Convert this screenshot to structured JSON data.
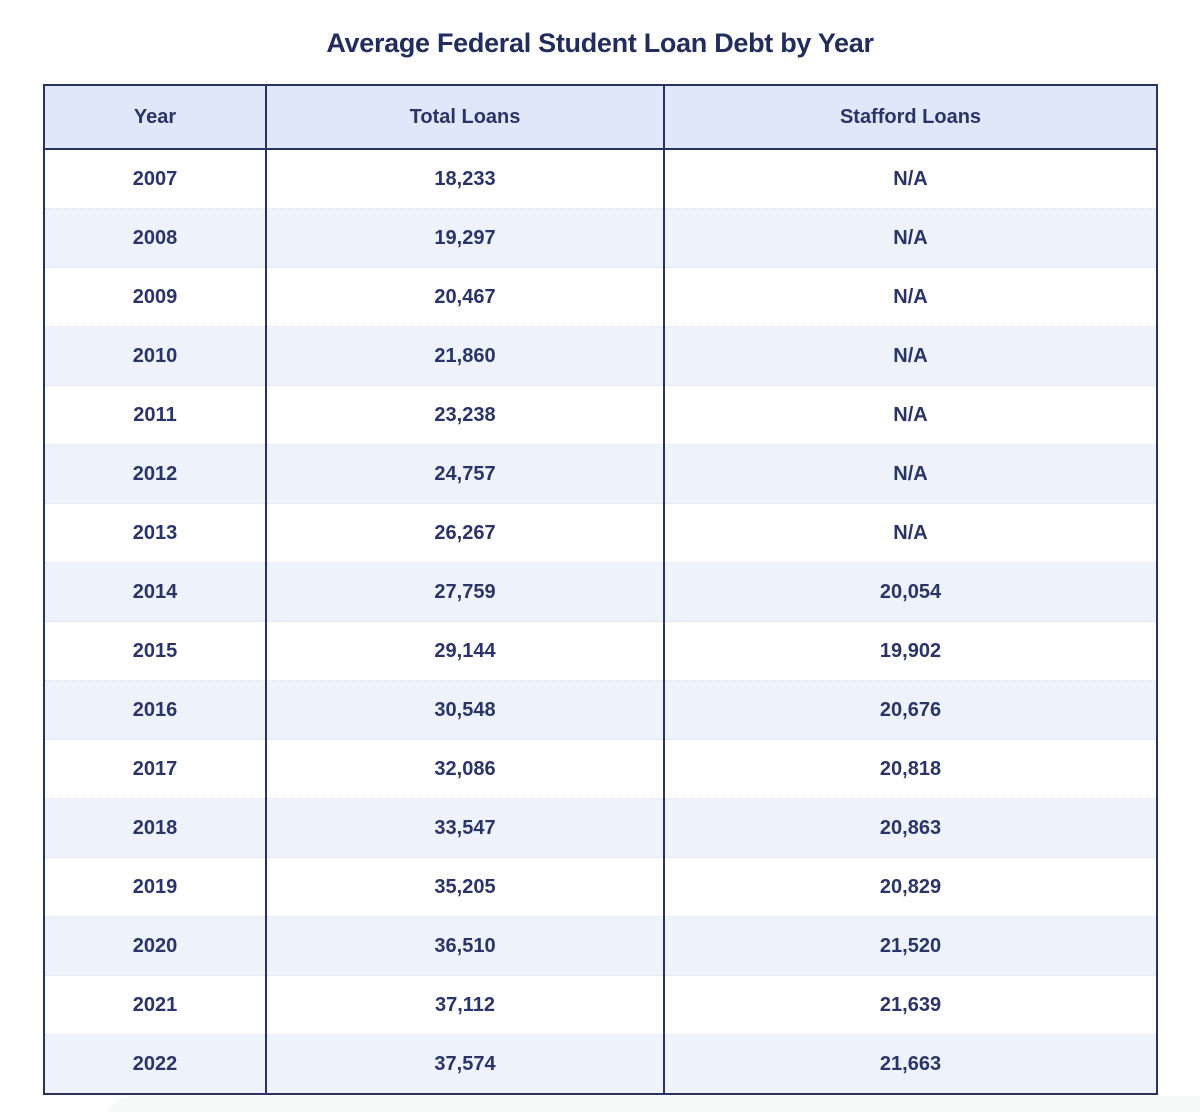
{
  "page": {
    "title": "Average Federal Student Loan Debt by Year"
  },
  "table": {
    "columns": [
      "Year",
      "Total Loans",
      "Stafford Loans"
    ],
    "rows": [
      [
        "2007",
        "18,233",
        "N/A"
      ],
      [
        "2008",
        "19,297",
        "N/A"
      ],
      [
        "2009",
        "20,467",
        "N/A"
      ],
      [
        "2010",
        "21,860",
        "N/A"
      ],
      [
        "2011",
        "23,238",
        "N/A"
      ],
      [
        "2012",
        "24,757",
        "N/A"
      ],
      [
        "2013",
        "26,267",
        "N/A"
      ],
      [
        "2014",
        "27,759",
        "20,054"
      ],
      [
        "2015",
        "29,144",
        "19,902"
      ],
      [
        "2016",
        "30,548",
        "20,676"
      ],
      [
        "2017",
        "32,086",
        "20,818"
      ],
      [
        "2018",
        "33,547",
        "20,863"
      ],
      [
        "2019",
        "35,205",
        "20,829"
      ],
      [
        "2020",
        "36,510",
        "21,520"
      ],
      [
        "2021",
        "37,112",
        "21,639"
      ],
      [
        "2022",
        "37,574",
        "21,663"
      ]
    ]
  },
  "chart_data": {
    "type": "table",
    "title": "Average Federal Student Loan Debt by Year",
    "categories": [
      "2007",
      "2008",
      "2009",
      "2010",
      "2011",
      "2012",
      "2013",
      "2014",
      "2015",
      "2016",
      "2017",
      "2018",
      "2019",
      "2020",
      "2021",
      "2022"
    ],
    "series": [
      {
        "name": "Total Loans",
        "values": [
          18233,
          19297,
          20467,
          21860,
          23238,
          24757,
          26267,
          27759,
          29144,
          30548,
          32086,
          33547,
          35205,
          36510,
          37112,
          37574
        ]
      },
      {
        "name": "Stafford Loans",
        "values": [
          null,
          null,
          null,
          null,
          null,
          null,
          null,
          20054,
          19902,
          20676,
          20818,
          20863,
          20829,
          21520,
          21639,
          21663
        ]
      }
    ],
    "legend_position": "none",
    "grid": false
  },
  "colors": {
    "border_navy": "#2a335f",
    "header_bg": "#dfe7f9",
    "alt_row_bg": "#eef2fb",
    "text_navy": "#2b3467",
    "title_navy": "#222d5c"
  }
}
